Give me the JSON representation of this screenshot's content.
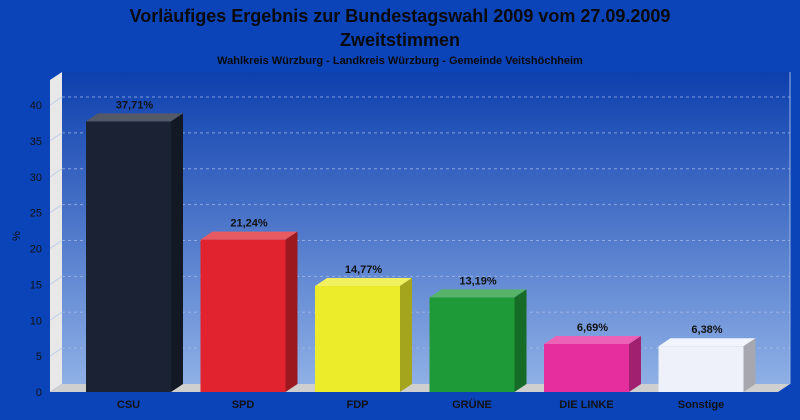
{
  "header": {
    "title_line1": "Vorläufiges Ergebnis zur Bundestagswahl 2009 vom 27.09.2009",
    "title_line2": "Zweitstimmen",
    "subtitle": "Wahlkreis Würzburg - Landkreis Würzburg - Gemeinde Veitshöchheim"
  },
  "chart_data": {
    "type": "bar",
    "title": "Vorläufiges Ergebnis zur Bundestagswahl 2009 vom 27.09.2009 Zweitstimmen",
    "subtitle": "Wahlkreis Würzburg - Landkreis Würzburg - Gemeinde Veitshöchheim",
    "xlabel": "",
    "ylabel": "%",
    "ylim": [
      0,
      40
    ],
    "yticks": [
      0,
      5,
      10,
      15,
      20,
      25,
      30,
      35,
      40
    ],
    "grid": true,
    "categories": [
      "CSU",
      "SPD",
      "FDP",
      "GRÜNE",
      "DIE LINKE",
      "Sonstige"
    ],
    "values": [
      37.71,
      21.24,
      14.77,
      13.19,
      6.69,
      6.38
    ],
    "data_labels": [
      "37,71%",
      "21,24%",
      "14,77%",
      "13,19%",
      "6,69%",
      "6,38%"
    ],
    "colors": [
      "#1a2233",
      "#e0232e",
      "#ecec2a",
      "#1f9a38",
      "#e62e9e",
      "#eef0fa"
    ]
  },
  "colors": {
    "background": "#0b44b8",
    "plot_top": "#0d3fae",
    "plot_bottom": "#8fb0e6"
  }
}
